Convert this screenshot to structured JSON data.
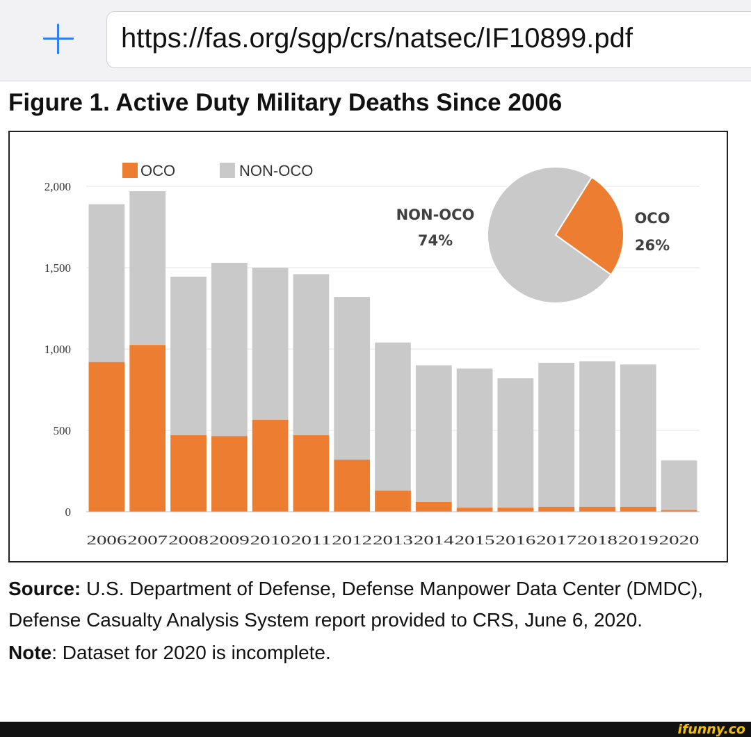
{
  "browser": {
    "url": "https://fas.org/sgp/crs/natsec/IF10899.pdf",
    "add_icon": "plus-icon"
  },
  "figure_title": "Figure 1. Active Duty Military Deaths Since 2006",
  "colors": {
    "oco": "#ed7d31",
    "non_oco": "#c9c9c9",
    "gridline": "#e3e3e3",
    "axis_text": "#333333",
    "url_accent": "#2f7ff0"
  },
  "chart_data": {
    "type": "bar",
    "stacked": true,
    "title": "",
    "xlabel": "",
    "ylabel": "",
    "ylim": [
      0,
      2000
    ],
    "yticks": [
      "0",
      "500",
      "1,000",
      "1,500",
      "2,000"
    ],
    "grid": true,
    "legend_position": "top-left",
    "categories": [
      "2006",
      "2007",
      "2008",
      "2009",
      "2010",
      "2011",
      "2012",
      "2013",
      "2014",
      "2015",
      "2016",
      "2017",
      "2018",
      "2019",
      "2020"
    ],
    "series": [
      {
        "name": "OCO",
        "color": "#ed7d31",
        "values": [
          920,
          1025,
          470,
          465,
          565,
          470,
          320,
          130,
          60,
          25,
          25,
          30,
          30,
          30,
          10
        ]
      },
      {
        "name": "NON-OCO",
        "color": "#c9c9c9",
        "values": [
          970,
          945,
          975,
          1065,
          935,
          990,
          1000,
          910,
          840,
          855,
          795,
          885,
          895,
          875,
          305
        ]
      }
    ],
    "inset_pie": {
      "type": "pie",
      "slices": [
        {
          "label": "NON-OCO",
          "percent_label": "74%",
          "value": 74,
          "color": "#c9c9c9"
        },
        {
          "label": "OCO",
          "percent_label": "26%",
          "value": 26,
          "color": "#ed7d31"
        }
      ]
    }
  },
  "source": {
    "label": "Source:",
    "text": " U.S. Department of Defense, Defense Manpower Data Center (DMDC), Defense Casualty Analysis System report provided to CRS, June 6, 2020."
  },
  "note": {
    "label": "Note",
    "text": ": Dataset for 2020 is incomplete."
  },
  "watermark": "ifunny.co"
}
